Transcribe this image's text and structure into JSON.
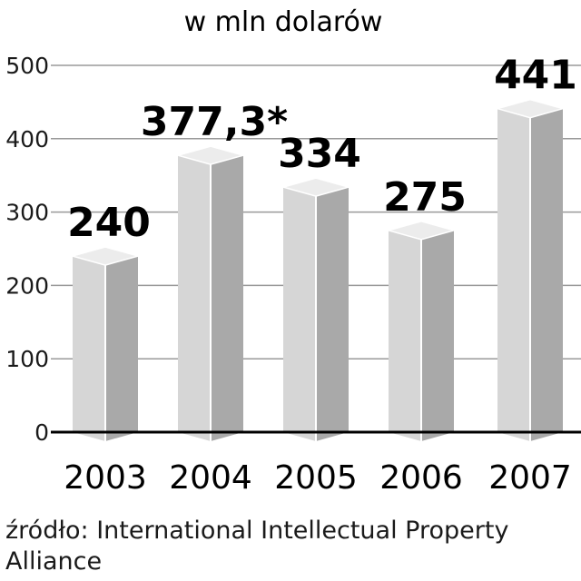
{
  "chart_data": {
    "type": "bar",
    "title": "w mln dolarów",
    "categories": [
      "2003",
      "2004",
      "2005",
      "2006",
      "2007"
    ],
    "values": [
      240,
      377.3,
      334,
      275,
      441
    ],
    "data_labels": [
      "240",
      "377,3*",
      "334",
      "275",
      "441"
    ],
    "yticks": [
      0,
      100,
      200,
      300,
      400,
      500
    ],
    "ylim": [
      0,
      500
    ],
    "grid": true,
    "colors": {
      "front": "#d6d6d6",
      "side": "#a9a9a9",
      "top": "#ececec",
      "edge": "#ffffff"
    }
  },
  "source": "źródło:  International Intellectual Property Alliance"
}
